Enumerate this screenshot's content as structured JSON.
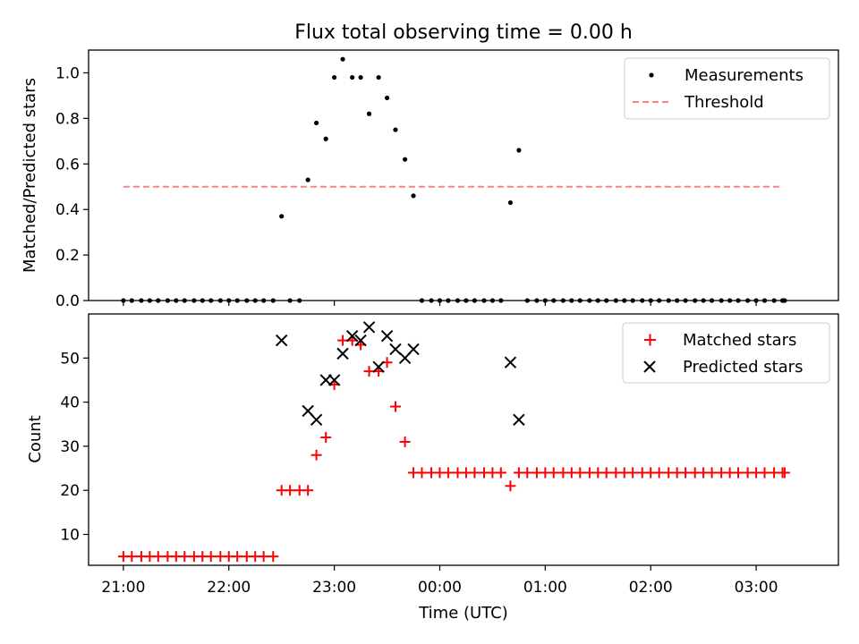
{
  "chart_data": [
    {
      "type": "scatter",
      "title": "Flux total observing time = 0.00 h",
      "xlabel": "",
      "ylabel": "Matched/Predicted stars",
      "ylim": [
        0,
        1.1
      ],
      "yticks": [
        "0.0",
        "0.2",
        "0.4",
        "0.6",
        "0.8",
        "1.0"
      ],
      "xlim_hours": [
        20.67,
        27.78
      ],
      "grid": false,
      "legend_position": "top-right",
      "series": [
        {
          "name": "Measurements",
          "color": "#000000",
          "marker": "dot",
          "x": [
            21.0,
            21.08,
            21.17,
            21.25,
            21.33,
            21.42,
            21.5,
            21.58,
            21.67,
            21.75,
            21.83,
            21.92,
            22.0,
            22.08,
            22.17,
            22.25,
            22.33,
            22.42,
            22.5,
            22.58,
            22.67,
            22.75,
            22.83,
            22.92,
            23.0,
            23.08,
            23.17,
            23.25,
            23.33,
            23.42,
            23.5,
            23.58,
            23.67,
            23.75,
            23.83,
            23.92,
            24.0,
            24.08,
            24.17,
            24.25,
            24.33,
            24.42,
            24.5,
            24.58,
            24.67,
            24.75,
            24.83,
            24.92,
            25.0,
            25.08,
            25.17,
            25.25,
            25.33,
            25.42,
            25.5,
            25.58,
            25.67,
            25.75,
            25.83,
            25.92,
            26.0,
            26.08,
            26.17,
            26.25,
            26.33,
            26.42,
            26.5,
            26.58,
            26.67,
            26.75,
            26.83,
            26.92,
            27.0,
            27.08,
            27.17,
            27.25,
            27.27
          ],
          "y": [
            0,
            0,
            0,
            0,
            0,
            0,
            0,
            0,
            0,
            0,
            0,
            0,
            0,
            0,
            0,
            0,
            0,
            0,
            0.37,
            0,
            0,
            0.53,
            0.78,
            0.71,
            0.98,
            1.06,
            0.98,
            0.98,
            0.82,
            0.98,
            0.89,
            0.75,
            0.62,
            0.46,
            0,
            0,
            0,
            0,
            0,
            0,
            0,
            0,
            0,
            0,
            0.43,
            0.66,
            0,
            0,
            0,
            0,
            0,
            0,
            0,
            0,
            0,
            0,
            0,
            0,
            0,
            0,
            0,
            0,
            0,
            0,
            0,
            0,
            0,
            0,
            0,
            0,
            0,
            0,
            0,
            0,
            0,
            0,
            0
          ]
        },
        {
          "name": "Threshold",
          "color": "#ff8080",
          "style": "dashed",
          "x": [
            21.0,
            27.25
          ],
          "y": [
            0.5,
            0.5
          ]
        }
      ]
    },
    {
      "type": "scatter",
      "title": "",
      "xlabel": "Time (UTC)",
      "ylabel": "Count",
      "ylim": [
        3,
        60
      ],
      "yticks": [
        "10",
        "20",
        "30",
        "40",
        "50"
      ],
      "xlim_hours": [
        20.67,
        27.78
      ],
      "xticks": [
        "21:00",
        "22:00",
        "23:00",
        "00:00",
        "01:00",
        "02:00",
        "03:00"
      ],
      "grid": false,
      "legend_position": "top-right",
      "series": [
        {
          "name": "Matched stars",
          "color": "#ff0000",
          "marker": "plus",
          "x": [
            21.0,
            21.08,
            21.17,
            21.25,
            21.33,
            21.42,
            21.5,
            21.58,
            21.67,
            21.75,
            21.83,
            21.92,
            22.0,
            22.08,
            22.17,
            22.25,
            22.33,
            22.42,
            22.5,
            22.58,
            22.67,
            22.75,
            22.83,
            22.92,
            23.0,
            23.08,
            23.17,
            23.25,
            23.33,
            23.42,
            23.5,
            23.58,
            23.67,
            23.75,
            23.83,
            23.92,
            24.0,
            24.08,
            24.17,
            24.25,
            24.33,
            24.42,
            24.5,
            24.58,
            24.67,
            24.75,
            24.83,
            24.92,
            25.0,
            25.08,
            25.17,
            25.25,
            25.33,
            25.42,
            25.5,
            25.58,
            25.67,
            25.75,
            25.83,
            25.92,
            26.0,
            26.08,
            26.17,
            26.25,
            26.33,
            26.42,
            26.5,
            26.58,
            26.67,
            26.75,
            26.83,
            26.92,
            27.0,
            27.08,
            27.17,
            27.25,
            27.27
          ],
          "y": [
            5,
            5,
            5,
            5,
            5,
            5,
            5,
            5,
            5,
            5,
            5,
            5,
            5,
            5,
            5,
            5,
            5,
            5,
            20,
            20,
            20,
            20,
            28,
            32,
            44,
            54,
            54,
            53,
            47,
            47,
            49,
            39,
            31,
            24,
            24,
            24,
            24,
            24,
            24,
            24,
            24,
            24,
            24,
            24,
            21,
            24,
            24,
            24,
            24,
            24,
            24,
            24,
            24,
            24,
            24,
            24,
            24,
            24,
            24,
            24,
            24,
            24,
            24,
            24,
            24,
            24,
            24,
            24,
            24,
            24,
            24,
            24,
            24,
            24,
            24,
            24,
            24
          ]
        },
        {
          "name": "Predicted stars",
          "color": "#000000",
          "marker": "x",
          "x": [
            22.5,
            22.75,
            22.83,
            22.92,
            23.0,
            23.08,
            23.17,
            23.25,
            23.33,
            23.42,
            23.5,
            23.58,
            23.67,
            23.75,
            24.67,
            24.75
          ],
          "y": [
            54,
            38,
            36,
            45,
            45,
            51,
            55,
            54,
            57,
            48,
            55,
            52,
            50,
            52,
            49,
            36
          ]
        }
      ]
    }
  ]
}
